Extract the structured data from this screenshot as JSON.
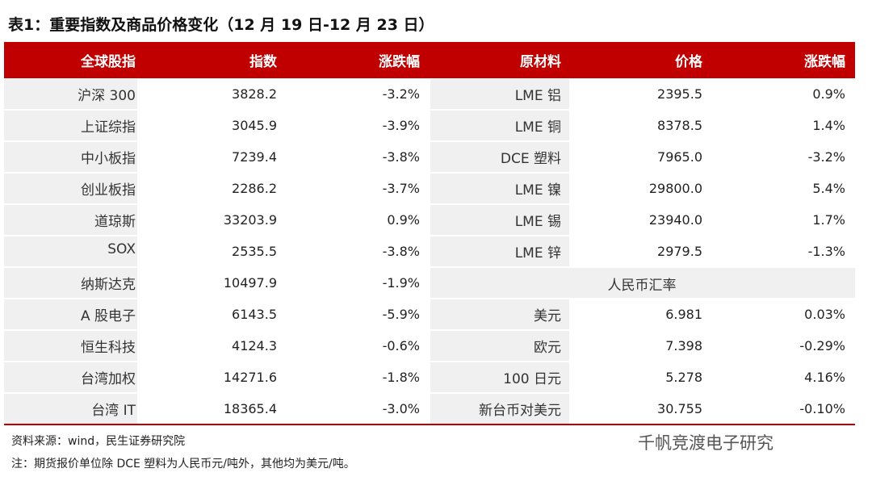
{
  "title": "表1：重要指数及商品价格变化（12 月 19 日-12 月 23 日）",
  "table": {
    "header": [
      "全球股指",
      "指数",
      "涨跌幅",
      "原材料",
      "价格",
      "涨跌幅"
    ],
    "rows": [
      [
        "沪深 300",
        "3828.2",
        "-3.2%",
        "LME 铝",
        "2395.5",
        "0.9%"
      ],
      [
        "上证综指",
        "3045.9",
        "-3.9%",
        "LME 铜",
        "8378.5",
        "1.4%"
      ],
      [
        "中小板指",
        "7239.4",
        "-3.8%",
        "DCE 塑料",
        "7965.0",
        "-3.2%"
      ],
      [
        "创业板指",
        "2286.2",
        "-3.7%",
        "LME 镍",
        "29800.0",
        "5.4%"
      ],
      [
        "道琼斯",
        "33203.9",
        "0.9%",
        "LME 锡",
        "23940.0",
        "1.7%"
      ],
      [
        "SOX",
        "2535.5",
        "-3.8%",
        "LME 锌",
        "2979.5",
        "-1.3%"
      ],
      [
        "纳斯达克",
        "10497.9",
        "-1.9%",
        "人民币汇率"
      ],
      [
        "A 股电子",
        "6143.5",
        "-5.9%",
        "美元",
        "6.981",
        "0.03%"
      ],
      [
        "恒生科技",
        "4124.3",
        "-0.6%",
        "欧元",
        "7.398",
        "-0.29%"
      ],
      [
        "台湾加权",
        "14271.6",
        "-1.8%",
        "100 日元",
        "5.278",
        "4.16%"
      ],
      [
        "台湾 IT",
        "18365.4",
        "-3.0%",
        "新台币对美元",
        "30.755",
        "-0.10%"
      ]
    ]
  },
  "footnotes": [
    "资料来源：wind，民生证券研究院",
    "注：期货报价单位除 DCE 塑料为人民币元/吨外，其他均为美元/吨。"
  ],
  "watermark": "千帆竞渡电子研究"
}
